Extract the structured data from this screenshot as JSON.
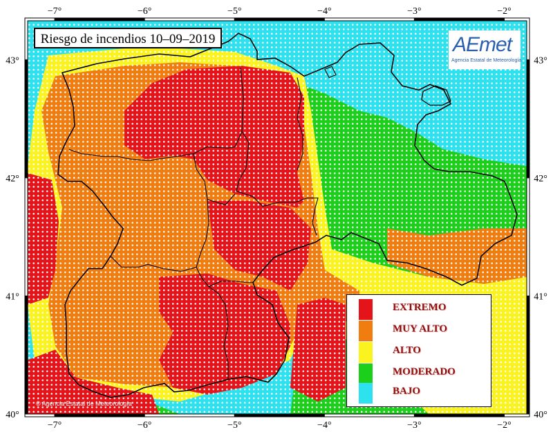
{
  "title": "Riesgo de incendios 10–09–2019",
  "logo": {
    "main": "AEmet",
    "subtitle": "Agencia Estatal de Meteorología"
  },
  "copyright": "© Agencia Estatal de Meteorología",
  "axes": {
    "lon_ticks": [
      "−7°",
      "−6°",
      "−5°",
      "−4°",
      "−3°",
      "−2°"
    ],
    "lat_ticks": [
      "43°",
      "42°",
      "41°",
      "40°"
    ],
    "lon_range": [
      -7.3,
      -1.75
    ],
    "lat_range": [
      40.0,
      43.33
    ]
  },
  "legend": {
    "items": [
      {
        "label": "EXTREMO",
        "color": "#e5141a"
      },
      {
        "label": "MUY ALTO",
        "color": "#f07d10"
      },
      {
        "label": "ALTO",
        "color": "#fbf31f"
      },
      {
        "label": "MODERADO",
        "color": "#1ccf1a"
      },
      {
        "label": "BAJO",
        "color": "#2de2ee"
      }
    ]
  },
  "colors": {
    "dot": "#ffffff",
    "border": "#000000",
    "background_bajo": "#2de2ee"
  }
}
